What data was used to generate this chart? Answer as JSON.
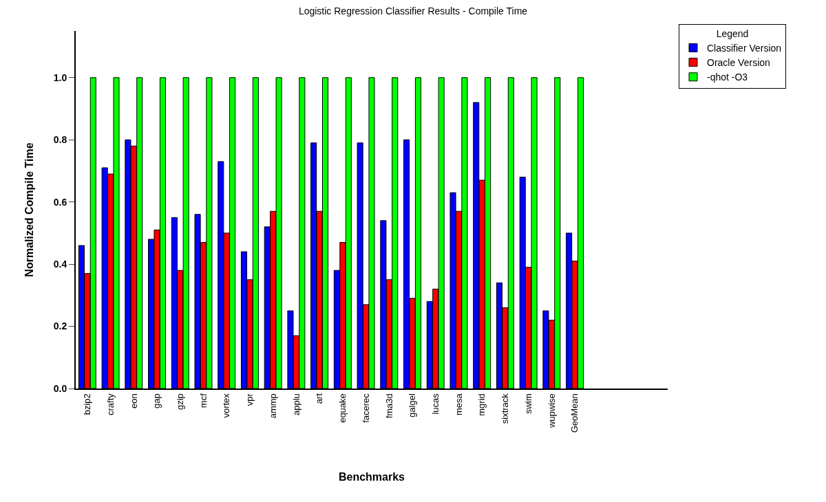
{
  "chart_data": {
    "type": "bar",
    "title": "Logistic Regression Classifier Results - Compile Time",
    "xlabel": "Benchmarks",
    "ylabel": "Normalized Compile Time",
    "legend_title": "Legend",
    "categories": [
      "bzip2",
      "crafty",
      "eon",
      "gap",
      "gzip",
      "mcf",
      "vortex",
      "vpr",
      "ammp",
      "applu",
      "art",
      "equake",
      "facerec",
      "fma3d",
      "galgel",
      "lucas",
      "mesa",
      "mgrid",
      "sixtrack",
      "swim",
      "wupwise",
      "GeoMean"
    ],
    "series": [
      {
        "name": "Classifier Version",
        "color": "#0000ff",
        "values": [
          0.46,
          0.71,
          0.8,
          0.48,
          0.55,
          0.56,
          0.73,
          0.44,
          0.52,
          0.25,
          0.79,
          0.38,
          0.79,
          0.54,
          0.8,
          0.28,
          0.63,
          0.92,
          0.34,
          0.68,
          0.25,
          0.5
        ]
      },
      {
        "name": "Oracle Version",
        "color": "#ff0000",
        "values": [
          0.37,
          0.69,
          0.78,
          0.51,
          0.38,
          0.47,
          0.5,
          0.35,
          0.57,
          0.17,
          0.57,
          0.47,
          0.27,
          0.35,
          0.29,
          0.32,
          0.57,
          0.67,
          0.26,
          0.39,
          0.22,
          0.41
        ]
      },
      {
        "name": "-qhot -O3",
        "color": "#00ff00",
        "values": [
          1,
          1,
          1,
          1,
          1,
          1,
          1,
          1,
          1,
          1,
          1,
          1,
          1,
          1,
          1,
          1,
          1,
          1,
          1,
          1,
          1,
          1
        ]
      }
    ],
    "ylim": [
      0,
      1.15
    ],
    "yticks": [
      {
        "value": 0,
        "label": "0.0"
      },
      {
        "value": 0.2,
        "label": "0.2"
      },
      {
        "value": 0.4,
        "label": "0.4"
      },
      {
        "value": 0.6,
        "label": "0.6"
      },
      {
        "value": 0.8,
        "label": "0.8"
      },
      {
        "value": 1,
        "label": "1.0"
      }
    ],
    "grid": false,
    "legend": "top right"
  }
}
